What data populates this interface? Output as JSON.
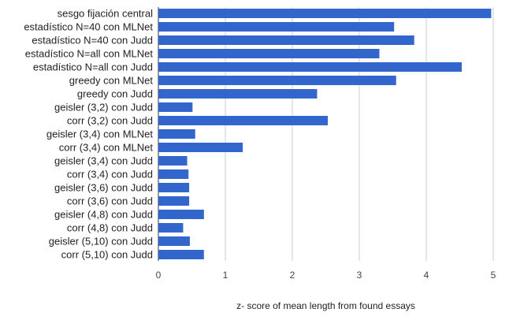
{
  "chart_data": {
    "type": "bar",
    "orientation": "horizontal",
    "title": "",
    "xlabel": "z- score of mean length from found essays",
    "ylabel": "",
    "xlim": [
      0,
      5
    ],
    "x_ticks": [
      0,
      1,
      2,
      3,
      4,
      5
    ],
    "x_tick_labels": [
      "0",
      "1",
      "2",
      "3",
      "4",
      "5"
    ],
    "grid": "vertical",
    "legend": "none",
    "color": "#3366cc",
    "categories": [
      "sesgo fijación central",
      "estadístico N=40 con MLNet",
      "estadístico N=40 con Judd",
      "estadístico N=all con MLNet",
      "estadístico N=all con Judd",
      "greedy con MLNet",
      "greedy con Judd",
      "geisler (3,2) con Judd",
      "corr (3,2) con Judd",
      "geisler (3,4) con MLNet",
      "corr (3,4) con MLNet",
      "geisler (3,4) con Judd",
      "corr (3,4) con Judd",
      "geisler (3,6) con Judd",
      "corr (3,6) con Judd",
      "geisler (4,8) con Judd",
      "corr (4,8) con Judd",
      "geisler (5,10) con Judd",
      "corr (5,10) con Judd"
    ],
    "values": [
      4.97,
      3.52,
      3.82,
      3.3,
      4.53,
      3.55,
      2.37,
      0.51,
      2.53,
      0.55,
      1.26,
      0.43,
      0.45,
      0.46,
      0.46,
      0.68,
      0.37,
      0.47,
      0.68
    ]
  }
}
